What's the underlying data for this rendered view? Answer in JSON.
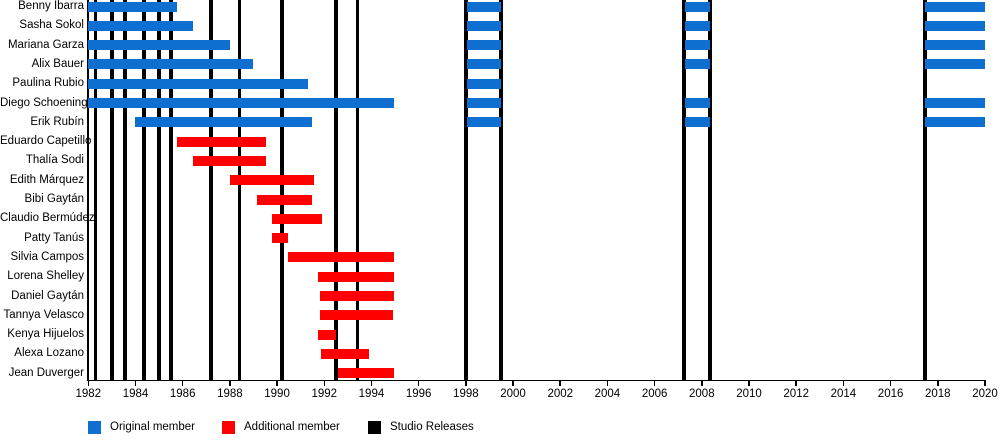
{
  "chart_data": {
    "type": "timeline",
    "x_axis": {
      "start": 1982,
      "end": 2020,
      "tick_step": 2,
      "tick_labels": [
        "1982",
        "1984",
        "1986",
        "1988",
        "1990",
        "1992",
        "1994",
        "1996",
        "1998",
        "2000",
        "2002",
        "2004",
        "2006",
        "2008",
        "2010",
        "2012",
        "2014",
        "2016",
        "2018",
        "2020"
      ]
    },
    "rows": [
      {
        "name": "Benny Ibarra",
        "segments": [
          {
            "start": 1982.0,
            "end": 1985.75,
            "type": "original"
          },
          {
            "start": 1998.05,
            "end": 1999.5,
            "type": "original"
          },
          {
            "start": 2007.3,
            "end": 2008.35,
            "type": "original"
          },
          {
            "start": 2017.45,
            "end": 2020.0,
            "type": "original"
          }
        ]
      },
      {
        "name": "Sasha Sokol",
        "segments": [
          {
            "start": 1982.0,
            "end": 1986.45,
            "type": "original"
          },
          {
            "start": 1998.05,
            "end": 1999.5,
            "type": "original"
          },
          {
            "start": 2007.3,
            "end": 2008.35,
            "type": "original"
          },
          {
            "start": 2017.45,
            "end": 2020.0,
            "type": "original"
          }
        ]
      },
      {
        "name": "Mariana Garza",
        "segments": [
          {
            "start": 1982.0,
            "end": 1988.0,
            "type": "original"
          },
          {
            "start": 1998.05,
            "end": 1999.5,
            "type": "original"
          },
          {
            "start": 2007.3,
            "end": 2008.35,
            "type": "original"
          },
          {
            "start": 2017.45,
            "end": 2020.0,
            "type": "original"
          }
        ]
      },
      {
        "name": "Alix Bauer",
        "segments": [
          {
            "start": 1982.0,
            "end": 1989.0,
            "type": "original"
          },
          {
            "start": 1998.05,
            "end": 1999.5,
            "type": "original"
          },
          {
            "start": 2007.3,
            "end": 2008.35,
            "type": "original"
          },
          {
            "start": 2017.45,
            "end": 2020.0,
            "type": "original"
          }
        ]
      },
      {
        "name": "Paulina Rubio",
        "segments": [
          {
            "start": 1982.0,
            "end": 1991.3,
            "type": "original"
          },
          {
            "start": 1998.05,
            "end": 1999.5,
            "type": "original"
          }
        ]
      },
      {
        "name": "Diego Schoening",
        "segments": [
          {
            "start": 1982.0,
            "end": 1994.95,
            "type": "original"
          },
          {
            "start": 1998.05,
            "end": 1999.5,
            "type": "original"
          },
          {
            "start": 2007.3,
            "end": 2008.35,
            "type": "original"
          },
          {
            "start": 2017.45,
            "end": 2020.0,
            "type": "original"
          }
        ]
      },
      {
        "name": "Erik Rubín",
        "segments": [
          {
            "start": 1984.0,
            "end": 1991.5,
            "type": "original"
          },
          {
            "start": 1998.05,
            "end": 1999.5,
            "type": "original"
          },
          {
            "start": 2007.3,
            "end": 2008.35,
            "type": "original"
          },
          {
            "start": 2017.45,
            "end": 2020.0,
            "type": "original"
          }
        ]
      },
      {
        "name": "Eduardo Capetillo",
        "segments": [
          {
            "start": 1985.75,
            "end": 1989.55,
            "type": "additional"
          }
        ]
      },
      {
        "name": "Thalía Sodi",
        "segments": [
          {
            "start": 1986.45,
            "end": 1989.55,
            "type": "additional"
          }
        ]
      },
      {
        "name": "Edith Márquez",
        "segments": [
          {
            "start": 1988.0,
            "end": 1991.55,
            "type": "additional"
          }
        ]
      },
      {
        "name": "Bibi Gaytán",
        "segments": [
          {
            "start": 1989.15,
            "end": 1991.5,
            "type": "additional"
          }
        ]
      },
      {
        "name": "Claudio Bermúdez",
        "segments": [
          {
            "start": 1989.8,
            "end": 1991.9,
            "type": "additional"
          }
        ]
      },
      {
        "name": "Patty Tanús",
        "segments": [
          {
            "start": 1989.8,
            "end": 1990.45,
            "type": "additional"
          }
        ]
      },
      {
        "name": "Silvia Campos",
        "segments": [
          {
            "start": 1990.45,
            "end": 1994.95,
            "type": "additional"
          }
        ]
      },
      {
        "name": "Lorena Shelley",
        "segments": [
          {
            "start": 1991.75,
            "end": 1994.95,
            "type": "additional"
          }
        ]
      },
      {
        "name": "Daniel Gaytán",
        "segments": [
          {
            "start": 1991.8,
            "end": 1994.95,
            "type": "additional"
          }
        ]
      },
      {
        "name": "Tannya Velasco",
        "segments": [
          {
            "start": 1991.8,
            "end": 1994.9,
            "type": "additional"
          }
        ]
      },
      {
        "name": "Kenya Hijuelos",
        "segments": [
          {
            "start": 1991.75,
            "end": 1992.5,
            "type": "additional"
          }
        ]
      },
      {
        "name": "Alexa Lozano",
        "segments": [
          {
            "start": 1991.85,
            "end": 1993.9,
            "type": "additional"
          }
        ]
      },
      {
        "name": "Jean Duverger",
        "segments": [
          {
            "start": 1992.6,
            "end": 1994.95,
            "type": "additional"
          }
        ]
      }
    ],
    "release_lines": [
      1982.3,
      1983.0,
      1983.55,
      1984.35,
      1985.0,
      1985.5,
      1987.2,
      1988.4,
      1990.2,
      1992.5,
      1993.4,
      1998.0,
      1999.5,
      2007.25,
      2008.35,
      2017.45
    ],
    "legend": [
      {
        "label": "Original member",
        "type": "original"
      },
      {
        "label": "Additional member",
        "type": "additional"
      },
      {
        "label": "Studio Releases",
        "type": "releases"
      }
    ],
    "colors": {
      "original": "#0e6fd0",
      "additional": "#fe0000",
      "releases": "#000000"
    }
  }
}
